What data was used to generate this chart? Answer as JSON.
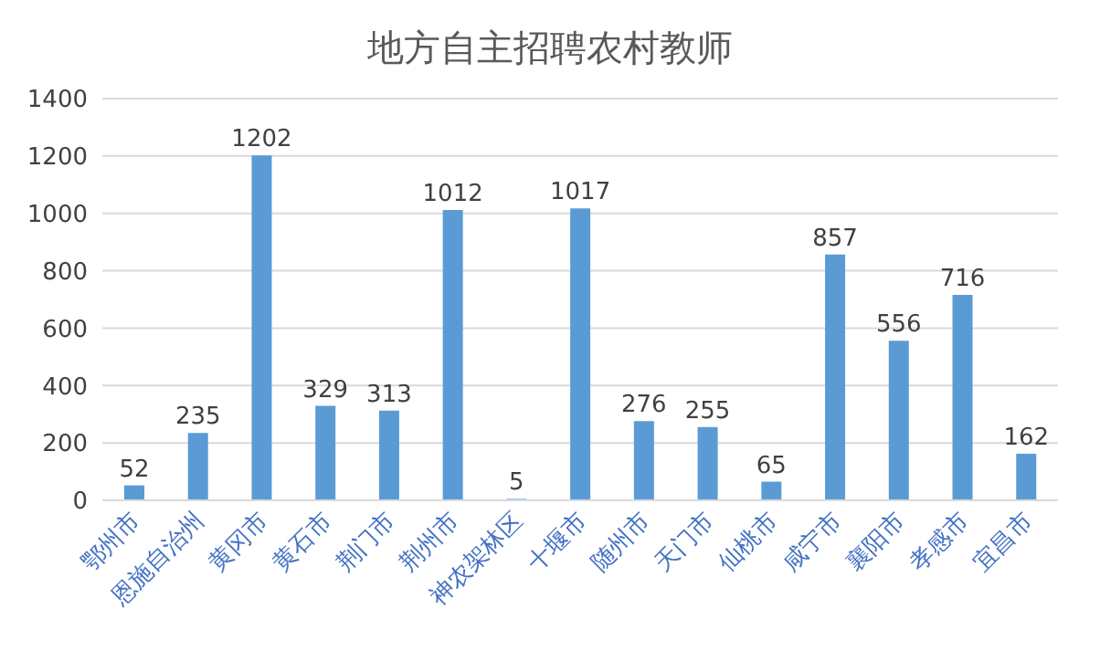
{
  "chart_data": {
    "type": "bar",
    "title": "地方自主招聘农村教师",
    "categories": [
      "鄂州市",
      "恩施自治州",
      "黄冈市",
      "黄石市",
      "荆门市",
      "荆州市",
      "神农架林区",
      "十堰市",
      "随州市",
      "天门市",
      "仙桃市",
      "咸宁市",
      "襄阳市",
      "孝感市",
      "宜昌市"
    ],
    "values": [
      52,
      235,
      1202,
      329,
      313,
      1012,
      5,
      1017,
      276,
      255,
      65,
      857,
      556,
      716,
      162
    ],
    "color": "#5b9bd5",
    "ylim": [
      0,
      1400
    ],
    "yticks": [
      0,
      200,
      400,
      600,
      800,
      1000,
      1200,
      1400
    ],
    "grid": "y",
    "data_labels": true
  }
}
